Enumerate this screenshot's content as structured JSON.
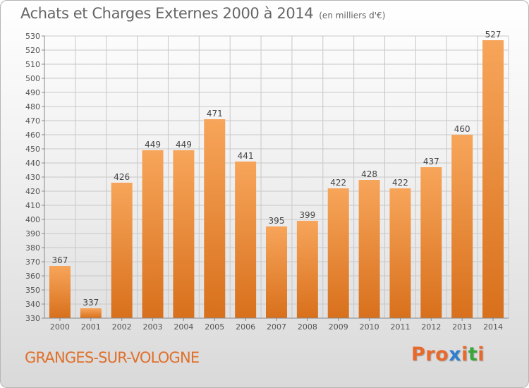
{
  "chart_data": {
    "type": "bar",
    "title": "Achats et Charges Externes 2000 à 2014",
    "subtitle": "(en milliers d'€)",
    "categories": [
      "2000",
      "2001",
      "2002",
      "2003",
      "2004",
      "2005",
      "2006",
      "2007",
      "2008",
      "2009",
      "2010",
      "2011",
      "2012",
      "2013",
      "2014"
    ],
    "values": [
      367,
      337,
      426,
      449,
      449,
      471,
      441,
      395,
      399,
      422,
      428,
      422,
      437,
      460,
      527
    ],
    "ylim": [
      330,
      530
    ],
    "ytick_step": 10,
    "xlabel": "",
    "ylabel": "",
    "grid": true
  },
  "location": "GRANGES-SUR-VOLOGNE",
  "logo_text": "Proxiti",
  "colors": {
    "bar_top": "#f7a55a",
    "bar_bottom": "#d8701c",
    "grid": "#c8c8c8",
    "city": "#e0702a",
    "logo": [
      "#e8692a",
      "#e8692a",
      "#e8692a",
      "#2f7fd0",
      "#e8692a",
      "#3aa63a",
      "#e8692a"
    ]
  }
}
